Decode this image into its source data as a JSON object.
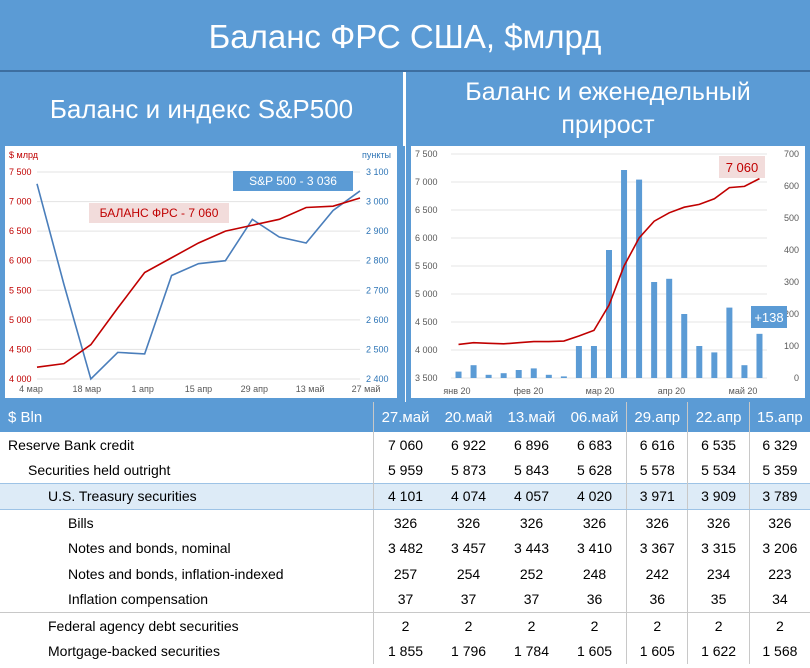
{
  "title": "Баланс ФРС США, $млрд",
  "left_header": "Баланс и индекс S&P500",
  "right_header_line1": "Баланс и еженедельный",
  "right_header_line2": "прирост",
  "colors": {
    "header_bg": "#5b9bd5",
    "balance_line": "#c00000",
    "sp500_line": "#4a7ebb",
    "bars": "#5b9bd5",
    "highlight_row": "#ddebf7"
  },
  "chart_data": [
    {
      "type": "line",
      "unit_left": "$ млрд",
      "unit_right": "пункты",
      "x_ticks": [
        "4 мар",
        "18 мар",
        "1 апр",
        "15 апр",
        "29 апр",
        "13 май",
        "27 май"
      ],
      "y_left_ticks": [
        "7 500",
        "7 000",
        "6 500",
        "6 000",
        "5 500",
        "5 000",
        "4 500",
        "4 000"
      ],
      "y_right_ticks": [
        "3 100",
        "3 000",
        "2 900",
        "2 800",
        "2 700",
        "2 600",
        "2 500",
        "2 400"
      ],
      "ylim_left": [
        4000,
        7500
      ],
      "ylim_right": [
        2400,
        3100
      ],
      "series": [
        {
          "name": "БАЛАНС ФРС - 7 060",
          "axis": "left",
          "values": [
            4200,
            4260,
            4580,
            5200,
            5800,
            6050,
            6300,
            6500,
            6600,
            6700,
            6900,
            6922,
            7060
          ]
        },
        {
          "name": "S&P 500 - 3 036",
          "axis": "right",
          "values": [
            3060,
            2720,
            2400,
            2490,
            2485,
            2750,
            2790,
            2800,
            2940,
            2880,
            2860,
            2970,
            3036
          ]
        }
      ]
    },
    {
      "type": "bar",
      "x_ticks": [
        "янв 20",
        "фев 20",
        "мар 20",
        "апр 20",
        "май 20"
      ],
      "y_left_ticks": [
        "7 500",
        "7 000",
        "6 500",
        "6 000",
        "5 500",
        "5 000",
        "4 500",
        "4 000",
        "3 500"
      ],
      "y_right_ticks": [
        "700",
        "600",
        "500",
        "400",
        "300",
        "200",
        "100",
        "0"
      ],
      "ylim_left": [
        3500,
        7500
      ],
      "ylim_right": [
        0,
        700
      ],
      "bar_values": [
        20,
        40,
        10,
        15,
        25,
        30,
        10,
        5,
        100,
        100,
        400,
        650,
        620,
        300,
        310,
        200,
        100,
        80,
        220,
        40,
        138
      ],
      "line_values": [
        4100,
        4130,
        4120,
        4110,
        4130,
        4150,
        4150,
        4160,
        4250,
        4350,
        4800,
        5500,
        6000,
        6300,
        6450,
        6550,
        6600,
        6700,
        6900,
        6922,
        7060
      ],
      "annotations": {
        "last_balance": "7 060",
        "last_increment": "+138"
      }
    }
  ],
  "table": {
    "header_label": "$ Bln",
    "columns": [
      "27.май",
      "20.май",
      "13.май",
      "06.май",
      "29.апр",
      "22.апр",
      "15.апр"
    ],
    "rows": [
      {
        "label": "Reserve Bank credit",
        "indent": 0,
        "values": [
          "7 060",
          "6 922",
          "6 896",
          "6 683",
          "6 616",
          "6 535",
          "6 329"
        ]
      },
      {
        "label": "Securities held outright",
        "indent": 1,
        "values": [
          "5 959",
          "5 873",
          "5 843",
          "5 628",
          "5 578",
          "5 534",
          "5 359"
        ]
      },
      {
        "label": "U.S. Treasury securities",
        "indent": 2,
        "values": [
          "4 101",
          "4 074",
          "4 057",
          "4 020",
          "3 971",
          "3 909",
          "3 789"
        ]
      },
      {
        "label": "Bills",
        "indent": 3,
        "values": [
          "326",
          "326",
          "326",
          "326",
          "326",
          "326",
          "326"
        ]
      },
      {
        "label": "Notes and bonds, nominal",
        "indent": 3,
        "values": [
          "3 482",
          "3 457",
          "3 443",
          "3 410",
          "3 367",
          "3 315",
          "3 206"
        ]
      },
      {
        "label": "Notes and bonds, inflation-indexed",
        "indent": 3,
        "values": [
          "257",
          "254",
          "252",
          "248",
          "242",
          "234",
          "223"
        ]
      },
      {
        "label": "Inflation compensation",
        "indent": 3,
        "values": [
          "37",
          "37",
          "37",
          "36",
          "36",
          "35",
          "34"
        ]
      },
      {
        "label": "Federal agency debt securities",
        "indent": 2,
        "values": [
          "2",
          "2",
          "2",
          "2",
          "2",
          "2",
          "2"
        ]
      },
      {
        "label": "Mortgage-backed securities",
        "indent": 2,
        "values": [
          "1 855",
          "1 796",
          "1 784",
          "1 605",
          "1 605",
          "1 622",
          "1 568"
        ]
      }
    ]
  }
}
